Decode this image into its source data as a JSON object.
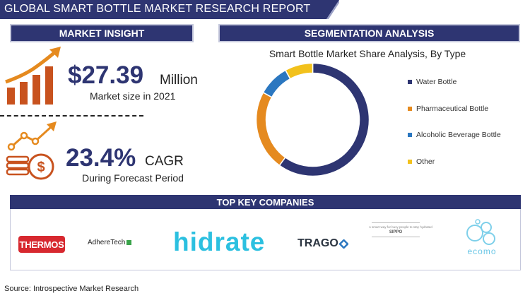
{
  "header": {
    "title": "GLOBAL SMART BOTTLE MARKET RESEARCH REPORT"
  },
  "market_insight": {
    "heading": "MARKET INSIGHT",
    "market_size_value": "$27.39",
    "market_size_unit": "Million",
    "market_size_caption": "Market size in 2021",
    "cagr_value": "23.4%",
    "cagr_unit": "CAGR",
    "cagr_caption": "During Forecast Period"
  },
  "segmentation": {
    "heading": "SEGMENTATION ANALYSIS"
  },
  "chart_data": {
    "type": "pie",
    "title": "Smart Bottle Market Share Analysis, By Type",
    "categories": [
      "Water Bottle",
      "Pharmaceutical Bottle",
      "Alcoholic Beverage Bottle",
      "Other"
    ],
    "values": [
      60,
      23,
      9,
      8
    ],
    "colors": [
      "#2e3572",
      "#e58a1f",
      "#2b77c0",
      "#f2c11c"
    ],
    "legend_position": "right"
  },
  "companies": {
    "heading": "TOP KEY COMPANIES",
    "logos": [
      "THERMOS",
      "AdhereTech",
      "hidrate",
      "TRAGO",
      "SIPPO",
      "ecomo"
    ],
    "sippo_tagline": "A smart way for busy people to stay hydrated"
  },
  "footer": {
    "source": "Source: Introspective Market Research"
  },
  "colors": {
    "navy": "#2e3572",
    "orange": "#e58a1f",
    "blue": "#2b77c0",
    "yellow": "#f2c11c"
  }
}
